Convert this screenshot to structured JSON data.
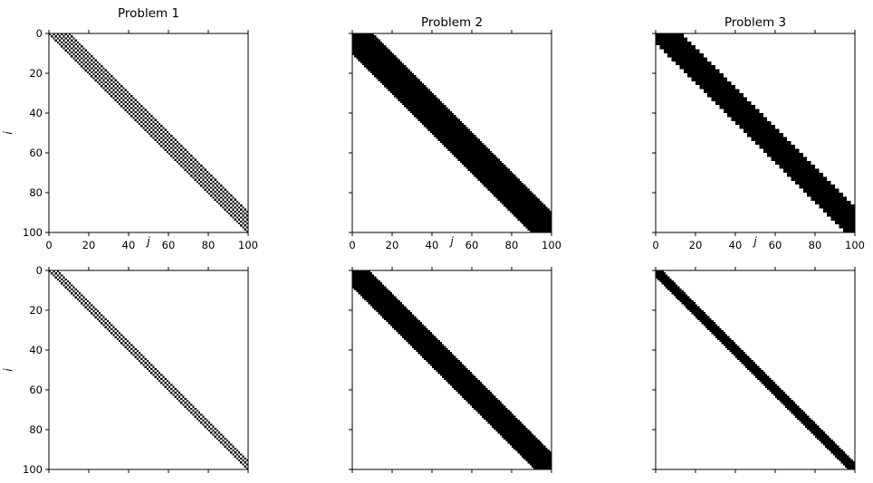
{
  "chart_data": [
    {
      "type": "heatmap",
      "title": "Problem 1",
      "pattern": "checkerboard",
      "n": 100,
      "band_lower": 0,
      "band_upper": 10,
      "fill_color": "#000000",
      "x_ticks": [
        "0",
        "20",
        "40",
        "60",
        "80",
        "100"
      ],
      "y_ticks": [
        "0",
        "20",
        "40",
        "60",
        "80",
        "100"
      ],
      "show_x_tick_labels": true,
      "show_y_tick_labels": true,
      "xlabel": "j",
      "ylabel": "i",
      "xlim": [
        0,
        100
      ],
      "ylim": [
        100,
        0
      ]
    },
    {
      "type": "heatmap",
      "title": "Problem 2",
      "pattern": "solid",
      "n": 100,
      "band_lower": 10,
      "band_upper": 10,
      "fill_color": "#000000",
      "x_ticks": [
        "0",
        "20",
        "40",
        "60",
        "80",
        "100"
      ],
      "y_ticks": [
        "0",
        "20",
        "40",
        "60",
        "80",
        "100"
      ],
      "show_x_tick_labels": true,
      "show_y_tick_labels": false,
      "xlabel": "j",
      "ylabel": "",
      "xlim": [
        0,
        100
      ],
      "ylim": [
        100,
        0
      ]
    },
    {
      "type": "heatmap",
      "title": "Problem 3",
      "pattern": "block",
      "block_size": 2,
      "n": 100,
      "band_lower": 2,
      "band_upper": 6,
      "fill_color": "#000000",
      "x_ticks": [
        "0",
        "20",
        "40",
        "60",
        "80",
        "100"
      ],
      "y_ticks": [
        "0",
        "20",
        "40",
        "60",
        "80",
        "100"
      ],
      "show_x_tick_labels": true,
      "show_y_tick_labels": false,
      "xlabel": "j",
      "ylabel": "",
      "xlim": [
        0,
        100
      ],
      "ylim": [
        100,
        0
      ]
    },
    {
      "type": "heatmap",
      "title": "",
      "pattern": "checkerboard",
      "n": 100,
      "band_lower": 0,
      "band_upper": 4,
      "fill_color": "#000000",
      "x_ticks": [
        "0",
        "20",
        "40",
        "60",
        "80",
        "100"
      ],
      "y_ticks": [
        "0",
        "20",
        "40",
        "60",
        "80",
        "100"
      ],
      "show_x_tick_labels": false,
      "show_y_tick_labels": true,
      "xlabel": "",
      "ylabel": "i",
      "xlim": [
        0,
        100
      ],
      "ylim": [
        100,
        0
      ]
    },
    {
      "type": "heatmap",
      "title": "",
      "pattern": "solid",
      "n": 100,
      "band_lower": 8,
      "band_upper": 8,
      "fill_color": "#000000",
      "x_ticks": [
        "0",
        "20",
        "40",
        "60",
        "80",
        "100"
      ],
      "y_ticks": [
        "0",
        "20",
        "40",
        "60",
        "80",
        "100"
      ],
      "show_x_tick_labels": false,
      "show_y_tick_labels": false,
      "xlabel": "",
      "ylabel": "",
      "xlim": [
        0,
        100
      ],
      "ylim": [
        100,
        0
      ]
    },
    {
      "type": "heatmap",
      "title": "",
      "pattern": "solid",
      "n": 100,
      "band_lower": 3,
      "band_upper": 3,
      "fill_color": "#000000",
      "x_ticks": [
        "0",
        "20",
        "40",
        "60",
        "80",
        "100"
      ],
      "y_ticks": [
        "0",
        "20",
        "40",
        "60",
        "80",
        "100"
      ],
      "show_x_tick_labels": false,
      "show_y_tick_labels": false,
      "xlabel": "",
      "ylabel": "",
      "xlim": [
        0,
        100
      ],
      "ylim": [
        100,
        0
      ]
    }
  ]
}
